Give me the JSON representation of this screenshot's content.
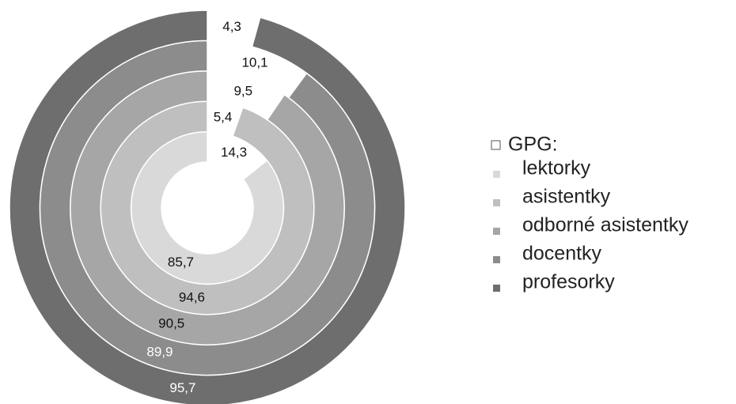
{
  "chart_data": {
    "type": "doughnut",
    "gap_name": "GPG:",
    "gap_color": "#ffffff",
    "series": [
      {
        "name": "lektorky",
        "color": "#d9d9d9",
        "values": [
          14.3,
          85.7
        ],
        "value_labels": [
          "14,3",
          "85,7"
        ]
      },
      {
        "name": "asistentky",
        "color": "#bfbfbf",
        "values": [
          5.4,
          94.6
        ],
        "value_labels": [
          "5,4",
          "94,6"
        ]
      },
      {
        "name": "odborné asistentky",
        "color": "#a6a6a6",
        "values": [
          9.5,
          90.5
        ],
        "value_labels": [
          "9,5",
          "90,5"
        ]
      },
      {
        "name": "docentky",
        "color": "#8c8c8c",
        "values": [
          10.1,
          89.9
        ],
        "value_labels": [
          "10,1",
          "89,9"
        ]
      },
      {
        "name": "profesorky",
        "color": "#6e6e6e",
        "values": [
          4.3,
          95.7
        ],
        "value_labels": [
          "4,3",
          "95,7"
        ]
      }
    ]
  }
}
